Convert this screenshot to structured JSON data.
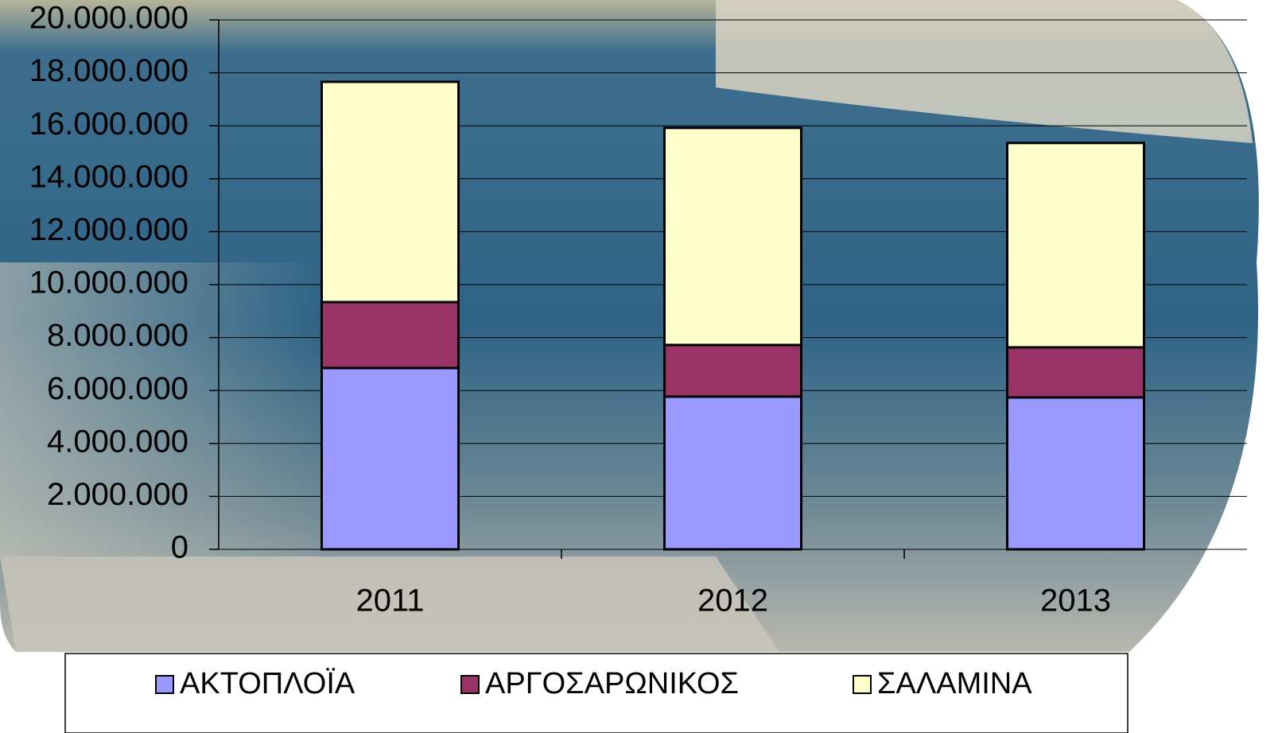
{
  "chart_data": {
    "type": "stacked_bar",
    "categories": [
      "2011",
      "2012",
      "2013"
    ],
    "series": [
      {
        "name": "ΑΚΤΟΠΛΟΪΑ",
        "color": "#9999ff",
        "values": [
          6850000,
          5770000,
          5740000
        ]
      },
      {
        "name": "ΑΡΓΟΣΑΡΩΝΙΚΟΣ",
        "color": "#993366",
        "values": [
          2490000,
          1950000,
          1890000
        ]
      },
      {
        "name": "ΣΑΛΑΜΙΝΑ",
        "color": "#ffffcc",
        "values": [
          8320000,
          8200000,
          7720000
        ]
      }
    ],
    "ylim": [
      0,
      20000000
    ],
    "yticks": [
      0,
      {
        "value": 2000000,
        "label": "2.000.000"
      },
      {
        "value": 4000000,
        "label": "4.000.000"
      },
      {
        "value": 6000000,
        "label": "6.000.000"
      },
      {
        "value": 8000000,
        "label": "8.000.000"
      },
      {
        "value": 10000000,
        "label": "10.000.000"
      },
      {
        "value": 12000000,
        "label": "12.000.000"
      },
      {
        "value": 14000000,
        "label": "14.000.000"
      },
      {
        "value": 16000000,
        "label": "16.000.000"
      },
      {
        "value": 18000000,
        "label": "18.000.000"
      },
      {
        "value": 20000000,
        "label": "20.000.000"
      }
    ],
    "grid": true
  }
}
